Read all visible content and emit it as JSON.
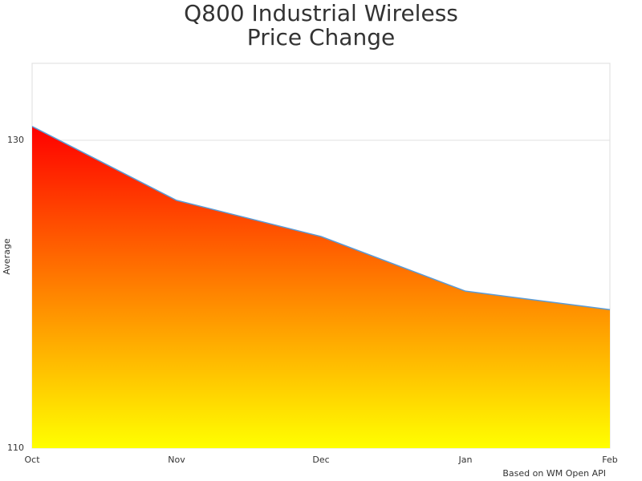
{
  "chart_data": {
    "type": "area",
    "title": [
      "Q800 Industrial Wireless",
      "Price Change"
    ],
    "y_label": "Average",
    "footer": "Based on WM Open API",
    "categories": [
      "Oct",
      "Nov",
      "Dec",
      "Jan",
      "Feb"
    ],
    "series": [
      {
        "name": "Average",
        "values": [
          130.9,
          126.1,
          123.75,
          120.2,
          119.0
        ]
      }
    ],
    "line_color": "#5b9bd5",
    "gradient": [
      "#ff0000",
      "#ffff00"
    ],
    "ylim": [
      110,
      135
    ],
    "yticks": [
      110,
      130
    ],
    "grid": true
  }
}
